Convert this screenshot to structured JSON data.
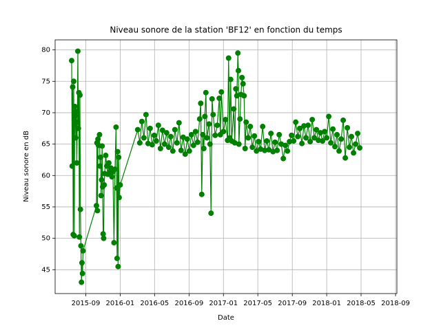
{
  "chart_data": {
    "type": "line",
    "title": "Niveau sonore de la station 'BF12' en fonction du temps",
    "xlabel": "Date",
    "ylabel": "Niveau sonore en dB",
    "xlim": [
      2015.37,
      2018.68
    ],
    "ylim": [
      41.2,
      81.6
    ],
    "xticks": [
      {
        "value": 2015.667,
        "label": "2015-09"
      },
      {
        "value": 2016.0,
        "label": "2016-01"
      },
      {
        "value": 2016.333,
        "label": "2016-05"
      },
      {
        "value": 2016.667,
        "label": "2016-09"
      },
      {
        "value": 2017.0,
        "label": "2017-01"
      },
      {
        "value": 2017.333,
        "label": "2017-05"
      },
      {
        "value": 2017.667,
        "label": "2017-09"
      },
      {
        "value": 2018.0,
        "label": "2018-01"
      },
      {
        "value": 2018.333,
        "label": "2018-05"
      },
      {
        "value": 2018.667,
        "label": "2018-09"
      }
    ],
    "yticks": [
      45,
      50,
      55,
      60,
      65,
      70,
      75,
      80
    ],
    "grid": true,
    "series": [
      {
        "color": "#008000",
        "x": [
          2015.53,
          2015.535,
          2015.54,
          2015.545,
          2015.55,
          2015.555,
          2015.56,
          2015.565,
          2015.57,
          2015.575,
          2015.58,
          2015.585,
          2015.59,
          2015.595,
          2015.6,
          2015.605,
          2015.61,
          2015.615,
          2015.62,
          2015.625,
          2015.63,
          2015.635,
          2015.64,
          2015.77,
          2015.775,
          2015.78,
          2015.785,
          2015.79,
          2015.8,
          2015.805,
          2015.81,
          2015.815,
          2015.82,
          2015.825,
          2015.83,
          2015.835,
          2015.84,
          2015.845,
          2015.85,
          2015.86,
          2015.87,
          2015.88,
          2015.89,
          2015.9,
          2015.91,
          2015.92,
          2015.93,
          2015.94,
          2015.95,
          2015.96,
          2015.965,
          2015.97,
          2015.975,
          2015.98,
          2015.985,
          2015.99,
          2016.0,
          2016.17,
          2016.19,
          2016.21,
          2016.23,
          2016.25,
          2016.27,
          2016.29,
          2016.31,
          2016.33,
          2016.35,
          2016.37,
          2016.39,
          2016.41,
          2016.43,
          2016.45,
          2016.47,
          2016.49,
          2016.51,
          2016.53,
          2016.55,
          2016.57,
          2016.59,
          2016.61,
          2016.63,
          2016.65,
          2016.67,
          2016.69,
          2016.71,
          2016.73,
          2016.75,
          2016.77,
          2016.78,
          2016.79,
          2016.8,
          2016.81,
          2016.82,
          2016.83,
          2016.84,
          2016.86,
          2016.87,
          2016.88,
          2016.89,
          2016.9,
          2016.92,
          2016.94,
          2016.96,
          2016.97,
          2016.98,
          2017.0,
          2017.02,
          2017.04,
          2017.05,
          2017.06,
          2017.07,
          2017.08,
          2017.1,
          2017.11,
          2017.12,
          2017.13,
          2017.14,
          2017.145,
          2017.15,
          2017.16,
          2017.17,
          2017.18,
          2017.19,
          2017.2,
          2017.21,
          2017.22,
          2017.24,
          2017.26,
          2017.28,
          2017.3,
          2017.32,
          2017.34,
          2017.36,
          2017.38,
          2017.4,
          2017.42,
          2017.44,
          2017.46,
          2017.48,
          2017.5,
          2017.52,
          2017.54,
          2017.56,
          2017.58,
          2017.6,
          2017.62,
          2017.64,
          2017.66,
          2017.68,
          2017.7,
          2017.72,
          2017.74,
          2017.76,
          2017.78,
          2017.8,
          2017.82,
          2017.84,
          2017.86,
          2017.88,
          2017.9,
          2017.92,
          2017.94,
          2017.96,
          2017.98,
          2018.0,
          2018.02,
          2018.04,
          2018.06,
          2018.08,
          2018.1,
          2018.12,
          2018.14,
          2018.16,
          2018.18,
          2018.2,
          2018.22,
          2018.24,
          2018.26,
          2018.28,
          2018.3,
          2018.32
        ],
        "values": [
          78.3,
          61.5,
          74.1,
          50.6,
          75.0,
          50.4,
          71.0,
          69.5,
          66.0,
          70.2,
          62.0,
          68.5,
          79.8,
          67.5,
          73.2,
          50.2,
          72.8,
          54.6,
          48.8,
          43.0,
          46.1,
          44.4,
          48.0,
          55.2,
          65.2,
          54.4,
          65.8,
          64.8,
          66.5,
          61.5,
          62.9,
          56.8,
          59.3,
          64.7,
          58.2,
          50.7,
          50.0,
          58.5,
          60.3,
          63.2,
          61.5,
          60.2,
          62.0,
          60.5,
          61.2,
          59.8,
          60.6,
          49.3,
          61.0,
          67.7,
          58.0,
          46.8,
          63.8,
          45.5,
          62.9,
          56.5,
          58.5,
          67.3,
          65.2,
          68.6,
          66.0,
          69.7,
          65.1,
          67.5,
          64.9,
          66.4,
          65.5,
          68.0,
          64.3,
          67.2,
          65.0,
          66.8,
          64.5,
          66.2,
          63.9,
          67.3,
          65.2,
          68.4,
          64.0,
          66.1,
          63.4,
          65.8,
          63.9,
          66.5,
          64.8,
          67.0,
          65.3,
          69.0,
          71.5,
          57.0,
          66.5,
          64.3,
          69.4,
          73.2,
          66.0,
          68.2,
          65.0,
          54.0,
          72.2,
          69.7,
          66.4,
          68.0,
          72.3,
          66.5,
          73.3,
          67.0,
          68.9,
          65.6,
          78.7,
          66.0,
          75.3,
          65.5,
          70.6,
          65.2,
          73.8,
          72.7,
          79.5,
          76.7,
          65.0,
          69.0,
          72.9,
          75.6,
          74.6,
          72.7,
          64.3,
          68.5,
          66.0,
          67.8,
          64.5,
          66.3,
          63.9,
          65.4,
          64.2,
          67.8,
          64.0,
          65.5,
          64.1,
          66.7,
          63.8,
          65.3,
          64.0,
          66.5,
          65.0,
          62.7,
          64.8,
          63.9,
          65.4,
          66.4,
          65.5,
          68.5,
          66.2,
          67.5,
          65.1,
          67.9,
          66.0,
          68.0,
          65.4,
          68.9,
          66.0,
          67.3,
          65.6,
          66.8,
          65.5,
          67.0,
          66.0,
          69.4,
          65.2,
          67.4,
          64.6,
          66.5,
          63.9,
          65.8,
          68.8,
          62.8,
          67.6,
          64.5,
          66.2,
          63.6,
          65.0,
          66.7,
          64.4
        ]
      }
    ]
  }
}
